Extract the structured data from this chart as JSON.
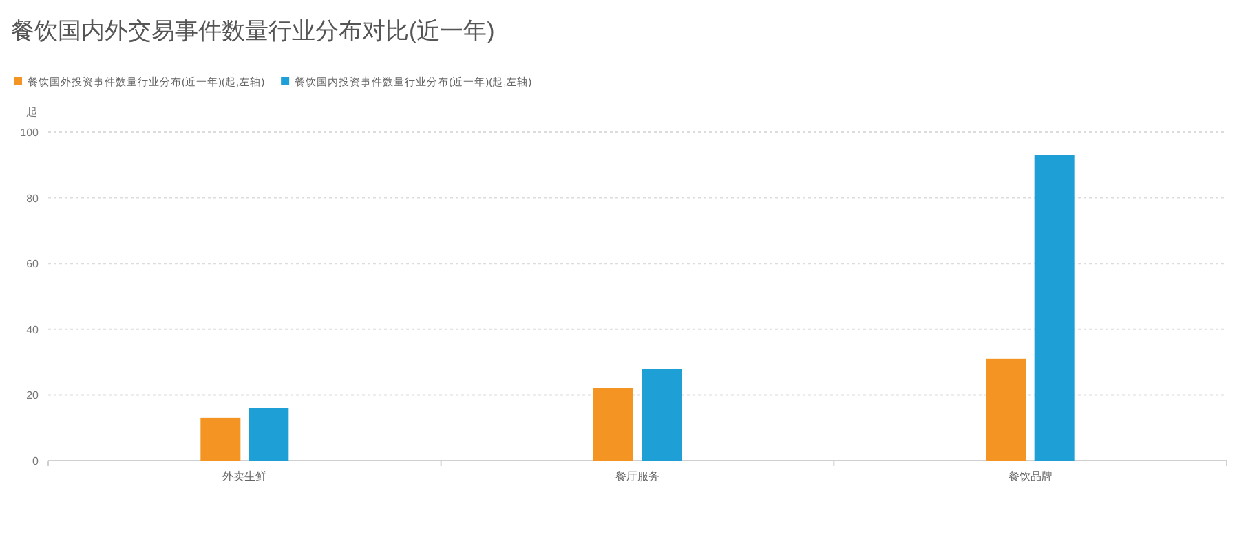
{
  "chart_data": {
    "type": "bar",
    "title": "餐饮国内外交易事件数量行业分布对比(近一年)",
    "ylabel": "起",
    "categories": [
      "外卖生鲜",
      "餐厅服务",
      "餐饮品牌"
    ],
    "series": [
      {
        "name": "餐饮国外投资事件数量行业分布(近一年)(起,左轴)",
        "color": "#f39423",
        "values": [
          13,
          22,
          31
        ]
      },
      {
        "name": "餐饮国内投资事件数量行业分布(近一年)(起,左轴)",
        "color": "#1e9fd6",
        "values": [
          16,
          28,
          93
        ]
      }
    ],
    "ylim": [
      0,
      100
    ],
    "yticks": [
      0,
      20,
      40,
      60,
      80,
      100
    ],
    "grid": "y",
    "legend": "top left"
  }
}
